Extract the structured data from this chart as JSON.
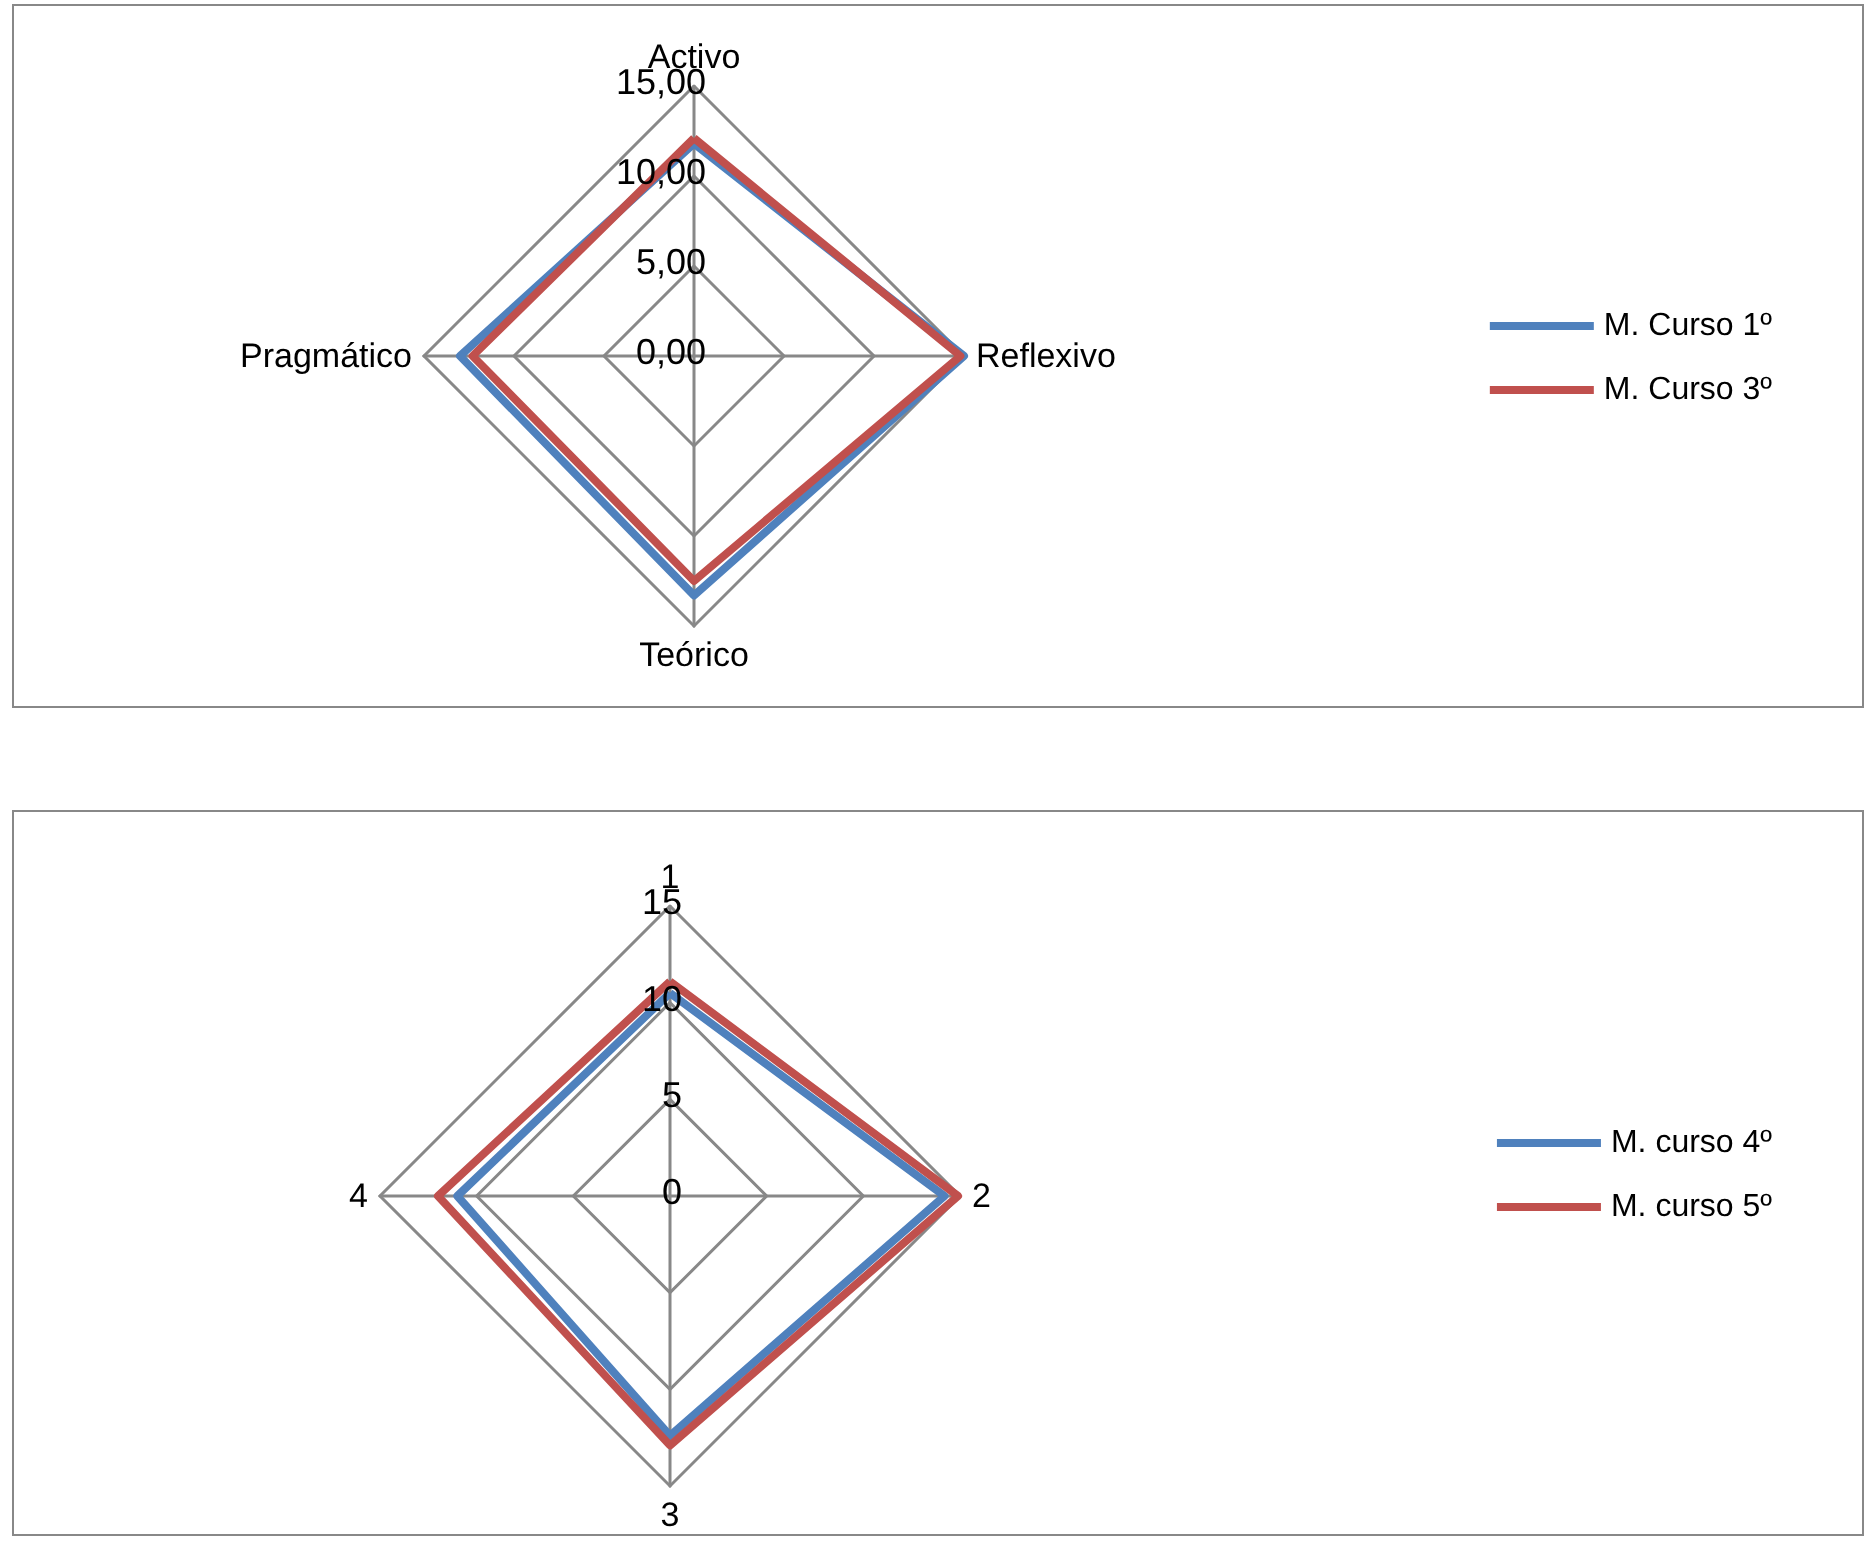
{
  "chart_data": [
    {
      "type": "radar",
      "categories": [
        "Activo",
        "Reflexivo",
        "Teórico",
        "Pragmático"
      ],
      "ylim": [
        0,
        15
      ],
      "yticks": [
        {
          "value": 0,
          "label": "0,00"
        },
        {
          "value": 5,
          "label": "5,00"
        },
        {
          "value": 10,
          "label": "10,00"
        },
        {
          "value": 15,
          "label": "15,00"
        }
      ],
      "grid": true,
      "legend": "right",
      "marker": "none",
      "series": [
        {
          "name": "M. Curso 1º",
          "color": "#4f81bd",
          "values": [
            11.8,
            15.0,
            13.3,
            13.0
          ]
        },
        {
          "name": "M. Curso 3º",
          "color": "#c0504d",
          "values": [
            12.1,
            14.8,
            12.5,
            12.3
          ]
        }
      ]
    },
    {
      "type": "radar",
      "categories": [
        "1",
        "2",
        "3",
        "4"
      ],
      "ylim": [
        0,
        15
      ],
      "yticks": [
        0,
        5,
        10,
        15
      ],
      "grid": true,
      "legend": "right",
      "marker": "none",
      "series": [
        {
          "name": "M. curso 4º",
          "color": "#4f81bd",
          "values": [
            10.5,
            14.2,
            12.4,
            11.0
          ]
        },
        {
          "name": "M. curso 5º",
          "color": "#c0504d",
          "values": [
            11.1,
            14.9,
            12.9,
            12.0
          ]
        }
      ]
    }
  ]
}
